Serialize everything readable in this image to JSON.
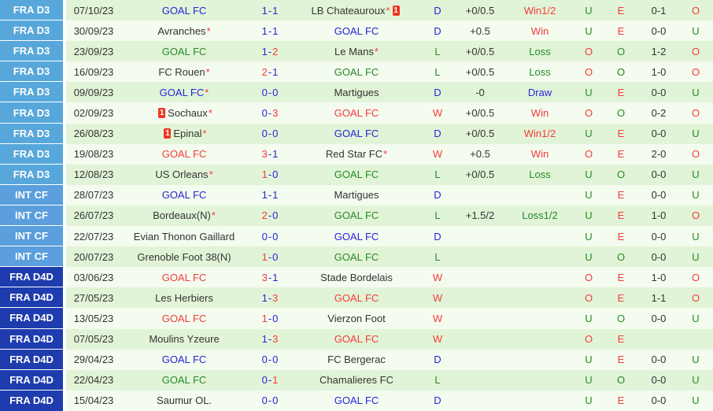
{
  "palette": {
    "red": "#f43c3c",
    "blue": "#2525d9",
    "green": "#268a26",
    "black": "#333333",
    "badge_d3": "#57a7da",
    "badge_cf": "#5b9fdc",
    "badge_d4d": "#1e3cae",
    "row_green": "#e2f4d7",
    "row_light": "#f4fbef",
    "card": "#ee3524",
    "separator": "#ffffff"
  },
  "icons": {
    "red_card": {
      "name": "red-card-icon",
      "glyph": "1"
    }
  },
  "table": {
    "rows": [
      {
        "league": "FRA D3",
        "league_style": "d3",
        "date": "07/10/23",
        "home": {
          "name": "GOAL FC",
          "color": "blue",
          "asterisk": false,
          "red_card": null
        },
        "score": {
          "home": "1",
          "away": "1",
          "winner": "draw"
        },
        "away": {
          "name": "LB Chateauroux",
          "color": "black",
          "asterisk": true,
          "red_card": "after"
        },
        "result": {
          "letter": "D",
          "color": "blue"
        },
        "handicap": "+0/0.5",
        "handicap_outcome": {
          "text": "Win1/2",
          "color": "red"
        },
        "goals_ou": {
          "text": "U",
          "color": "green"
        },
        "odd_even": {
          "text": "E",
          "color": "red"
        },
        "halftime_score": "0-1",
        "ht_ou": {
          "text": "O",
          "color": "red"
        }
      },
      {
        "league": "FRA D3",
        "league_style": "d3",
        "date": "30/09/23",
        "home": {
          "name": "Avranches",
          "color": "black",
          "asterisk": true,
          "red_card": null
        },
        "score": {
          "home": "1",
          "away": "1",
          "winner": "draw"
        },
        "away": {
          "name": "GOAL FC",
          "color": "blue",
          "asterisk": false,
          "red_card": null
        },
        "result": {
          "letter": "D",
          "color": "blue"
        },
        "handicap": "+0.5",
        "handicap_outcome": {
          "text": "Win",
          "color": "red"
        },
        "goals_ou": {
          "text": "U",
          "color": "green"
        },
        "odd_even": {
          "text": "E",
          "color": "red"
        },
        "halftime_score": "0-0",
        "ht_ou": {
          "text": "U",
          "color": "green"
        }
      },
      {
        "league": "FRA D3",
        "league_style": "d3",
        "date": "23/09/23",
        "home": {
          "name": "GOAL FC",
          "color": "green",
          "asterisk": false,
          "red_card": null
        },
        "score": {
          "home": "1",
          "away": "2",
          "winner": "away"
        },
        "away": {
          "name": "Le Mans",
          "color": "black",
          "asterisk": true,
          "red_card": null
        },
        "result": {
          "letter": "L",
          "color": "green"
        },
        "handicap": "+0/0.5",
        "handicap_outcome": {
          "text": "Loss",
          "color": "green"
        },
        "goals_ou": {
          "text": "O",
          "color": "red"
        },
        "odd_even": {
          "text": "O",
          "color": "green"
        },
        "halftime_score": "1-2",
        "ht_ou": {
          "text": "O",
          "color": "red"
        }
      },
      {
        "league": "FRA D3",
        "league_style": "d3",
        "date": "16/09/23",
        "home": {
          "name": "FC Rouen",
          "color": "black",
          "asterisk": true,
          "red_card": null
        },
        "score": {
          "home": "2",
          "away": "1",
          "winner": "home"
        },
        "away": {
          "name": "GOAL FC",
          "color": "green",
          "asterisk": false,
          "red_card": null
        },
        "result": {
          "letter": "L",
          "color": "green"
        },
        "handicap": "+0/0.5",
        "handicap_outcome": {
          "text": "Loss",
          "color": "green"
        },
        "goals_ou": {
          "text": "O",
          "color": "red"
        },
        "odd_even": {
          "text": "O",
          "color": "green"
        },
        "halftime_score": "1-0",
        "ht_ou": {
          "text": "O",
          "color": "red"
        }
      },
      {
        "league": "FRA D3",
        "league_style": "d3",
        "date": "09/09/23",
        "home": {
          "name": "GOAL FC",
          "color": "blue",
          "asterisk": true,
          "red_card": null
        },
        "score": {
          "home": "0",
          "away": "0",
          "winner": "draw"
        },
        "away": {
          "name": "Martigues",
          "color": "black",
          "asterisk": false,
          "red_card": null
        },
        "result": {
          "letter": "D",
          "color": "blue"
        },
        "handicap": "-0",
        "handicap_outcome": {
          "text": "Draw",
          "color": "blue"
        },
        "goals_ou": {
          "text": "U",
          "color": "green"
        },
        "odd_even": {
          "text": "E",
          "color": "red"
        },
        "halftime_score": "0-0",
        "ht_ou": {
          "text": "U",
          "color": "green"
        }
      },
      {
        "league": "FRA D3",
        "league_style": "d3",
        "date": "02/09/23",
        "home": {
          "name": "Sochaux",
          "color": "black",
          "asterisk": true,
          "red_card": "before"
        },
        "score": {
          "home": "0",
          "away": "3",
          "winner": "away"
        },
        "away": {
          "name": "GOAL FC",
          "color": "red",
          "asterisk": false,
          "red_card": null
        },
        "result": {
          "letter": "W",
          "color": "red"
        },
        "handicap": "+0/0.5",
        "handicap_outcome": {
          "text": "Win",
          "color": "red"
        },
        "goals_ou": {
          "text": "O",
          "color": "red"
        },
        "odd_even": {
          "text": "O",
          "color": "green"
        },
        "halftime_score": "0-2",
        "ht_ou": {
          "text": "O",
          "color": "red"
        }
      },
      {
        "league": "FRA D3",
        "league_style": "d3",
        "date": "26/08/23",
        "home": {
          "name": "Epinal",
          "color": "black",
          "asterisk": true,
          "red_card": "before"
        },
        "score": {
          "home": "0",
          "away": "0",
          "winner": "draw"
        },
        "away": {
          "name": "GOAL FC",
          "color": "blue",
          "asterisk": false,
          "red_card": null
        },
        "result": {
          "letter": "D",
          "color": "blue"
        },
        "handicap": "+0/0.5",
        "handicap_outcome": {
          "text": "Win1/2",
          "color": "red"
        },
        "goals_ou": {
          "text": "U",
          "color": "green"
        },
        "odd_even": {
          "text": "E",
          "color": "red"
        },
        "halftime_score": "0-0",
        "ht_ou": {
          "text": "U",
          "color": "green"
        }
      },
      {
        "league": "FRA D3",
        "league_style": "d3",
        "date": "19/08/23",
        "home": {
          "name": "GOAL FC",
          "color": "red",
          "asterisk": false,
          "red_card": null
        },
        "score": {
          "home": "3",
          "away": "1",
          "winner": "home"
        },
        "away": {
          "name": "Red Star FC",
          "color": "black",
          "asterisk": true,
          "red_card": null
        },
        "result": {
          "letter": "W",
          "color": "red"
        },
        "handicap": "+0.5",
        "handicap_outcome": {
          "text": "Win",
          "color": "red"
        },
        "goals_ou": {
          "text": "O",
          "color": "red"
        },
        "odd_even": {
          "text": "E",
          "color": "red"
        },
        "halftime_score": "2-0",
        "ht_ou": {
          "text": "O",
          "color": "red"
        }
      },
      {
        "league": "FRA D3",
        "league_style": "d3",
        "date": "12/08/23",
        "home": {
          "name": "US Orleans",
          "color": "black",
          "asterisk": true,
          "red_card": null
        },
        "score": {
          "home": "1",
          "away": "0",
          "winner": "home"
        },
        "away": {
          "name": "GOAL FC",
          "color": "green",
          "asterisk": false,
          "red_card": null
        },
        "result": {
          "letter": "L",
          "color": "green"
        },
        "handicap": "+0/0.5",
        "handicap_outcome": {
          "text": "Loss",
          "color": "green"
        },
        "goals_ou": {
          "text": "U",
          "color": "green"
        },
        "odd_even": {
          "text": "O",
          "color": "green"
        },
        "halftime_score": "0-0",
        "ht_ou": {
          "text": "U",
          "color": "green"
        }
      },
      {
        "league": "INT CF",
        "league_style": "cf",
        "date": "28/07/23",
        "home": {
          "name": "GOAL FC",
          "color": "blue",
          "asterisk": false,
          "red_card": null
        },
        "score": {
          "home": "1",
          "away": "1",
          "winner": "draw"
        },
        "away": {
          "name": "Martigues",
          "color": "black",
          "asterisk": false,
          "red_card": null
        },
        "result": {
          "letter": "D",
          "color": "blue"
        },
        "handicap": "",
        "handicap_outcome": {
          "text": "",
          "color": "black"
        },
        "goals_ou": {
          "text": "U",
          "color": "green"
        },
        "odd_even": {
          "text": "E",
          "color": "red"
        },
        "halftime_score": "0-0",
        "ht_ou": {
          "text": "U",
          "color": "green"
        }
      },
      {
        "league": "INT CF",
        "league_style": "cf",
        "date": "26/07/23",
        "home": {
          "name": "Bordeaux(N)",
          "color": "black",
          "asterisk": true,
          "red_card": null
        },
        "score": {
          "home": "2",
          "away": "0",
          "winner": "home"
        },
        "away": {
          "name": "GOAL FC",
          "color": "green",
          "asterisk": false,
          "red_card": null
        },
        "result": {
          "letter": "L",
          "color": "green"
        },
        "handicap": "+1.5/2",
        "handicap_outcome": {
          "text": "Loss1/2",
          "color": "green"
        },
        "goals_ou": {
          "text": "U",
          "color": "green"
        },
        "odd_even": {
          "text": "E",
          "color": "red"
        },
        "halftime_score": "1-0",
        "ht_ou": {
          "text": "O",
          "color": "red"
        }
      },
      {
        "league": "INT CF",
        "league_style": "cf",
        "date": "22/07/23",
        "home": {
          "name": "Evian Thonon Gaillard",
          "color": "black",
          "asterisk": false,
          "red_card": null
        },
        "score": {
          "home": "0",
          "away": "0",
          "winner": "draw"
        },
        "away": {
          "name": "GOAL FC",
          "color": "blue",
          "asterisk": false,
          "red_card": null
        },
        "result": {
          "letter": "D",
          "color": "blue"
        },
        "handicap": "",
        "handicap_outcome": {
          "text": "",
          "color": "black"
        },
        "goals_ou": {
          "text": "U",
          "color": "green"
        },
        "odd_even": {
          "text": "E",
          "color": "red"
        },
        "halftime_score": "0-0",
        "ht_ou": {
          "text": "U",
          "color": "green"
        }
      },
      {
        "league": "INT CF",
        "league_style": "cf",
        "date": "20/07/23",
        "home": {
          "name": "Grenoble Foot 38(N)",
          "color": "black",
          "asterisk": false,
          "red_card": null
        },
        "score": {
          "home": "1",
          "away": "0",
          "winner": "home"
        },
        "away": {
          "name": "GOAL FC",
          "color": "green",
          "asterisk": false,
          "red_card": null
        },
        "result": {
          "letter": "L",
          "color": "green"
        },
        "handicap": "",
        "handicap_outcome": {
          "text": "",
          "color": "black"
        },
        "goals_ou": {
          "text": "U",
          "color": "green"
        },
        "odd_even": {
          "text": "O",
          "color": "green"
        },
        "halftime_score": "0-0",
        "ht_ou": {
          "text": "U",
          "color": "green"
        }
      },
      {
        "league": "FRA D4D",
        "league_style": "d4d",
        "date": "03/06/23",
        "home": {
          "name": "GOAL FC",
          "color": "red",
          "asterisk": false,
          "red_card": null
        },
        "score": {
          "home": "3",
          "away": "1",
          "winner": "home"
        },
        "away": {
          "name": "Stade Bordelais",
          "color": "black",
          "asterisk": false,
          "red_card": null
        },
        "result": {
          "letter": "W",
          "color": "red"
        },
        "handicap": "",
        "handicap_outcome": {
          "text": "",
          "color": "black"
        },
        "goals_ou": {
          "text": "O",
          "color": "red"
        },
        "odd_even": {
          "text": "E",
          "color": "red"
        },
        "halftime_score": "1-0",
        "ht_ou": {
          "text": "O",
          "color": "red"
        }
      },
      {
        "league": "FRA D4D",
        "league_style": "d4d",
        "date": "27/05/23",
        "home": {
          "name": "Les Herbiers",
          "color": "black",
          "asterisk": false,
          "red_card": null
        },
        "score": {
          "home": "1",
          "away": "3",
          "winner": "away"
        },
        "away": {
          "name": "GOAL FC",
          "color": "red",
          "asterisk": false,
          "red_card": null
        },
        "result": {
          "letter": "W",
          "color": "red"
        },
        "handicap": "",
        "handicap_outcome": {
          "text": "",
          "color": "black"
        },
        "goals_ou": {
          "text": "O",
          "color": "red"
        },
        "odd_even": {
          "text": "E",
          "color": "red"
        },
        "halftime_score": "1-1",
        "ht_ou": {
          "text": "O",
          "color": "red"
        }
      },
      {
        "league": "FRA D4D",
        "league_style": "d4d",
        "date": "13/05/23",
        "home": {
          "name": "GOAL FC",
          "color": "red",
          "asterisk": false,
          "red_card": null
        },
        "score": {
          "home": "1",
          "away": "0",
          "winner": "home"
        },
        "away": {
          "name": "Vierzon Foot",
          "color": "black",
          "asterisk": false,
          "red_card": null
        },
        "result": {
          "letter": "W",
          "color": "red"
        },
        "handicap": "",
        "handicap_outcome": {
          "text": "",
          "color": "black"
        },
        "goals_ou": {
          "text": "U",
          "color": "green"
        },
        "odd_even": {
          "text": "O",
          "color": "green"
        },
        "halftime_score": "0-0",
        "ht_ou": {
          "text": "U",
          "color": "green"
        }
      },
      {
        "league": "FRA D4D",
        "league_style": "d4d",
        "date": "07/05/23",
        "home": {
          "name": "Moulins Yzeure",
          "color": "black",
          "asterisk": false,
          "red_card": null
        },
        "score": {
          "home": "1",
          "away": "3",
          "winner": "away"
        },
        "away": {
          "name": "GOAL FC",
          "color": "red",
          "asterisk": false,
          "red_card": null
        },
        "result": {
          "letter": "W",
          "color": "red"
        },
        "handicap": "",
        "handicap_outcome": {
          "text": "",
          "color": "black"
        },
        "goals_ou": {
          "text": "O",
          "color": "red"
        },
        "odd_even": {
          "text": "E",
          "color": "red"
        },
        "halftime_score": "",
        "ht_ou": {
          "text": "",
          "color": "black"
        }
      },
      {
        "league": "FRA D4D",
        "league_style": "d4d",
        "date": "29/04/23",
        "home": {
          "name": "GOAL FC",
          "color": "blue",
          "asterisk": false,
          "red_card": null
        },
        "score": {
          "home": "0",
          "away": "0",
          "winner": "draw"
        },
        "away": {
          "name": "FC Bergerac",
          "color": "black",
          "asterisk": false,
          "red_card": null
        },
        "result": {
          "letter": "D",
          "color": "blue"
        },
        "handicap": "",
        "handicap_outcome": {
          "text": "",
          "color": "black"
        },
        "goals_ou": {
          "text": "U",
          "color": "green"
        },
        "odd_even": {
          "text": "E",
          "color": "red"
        },
        "halftime_score": "0-0",
        "ht_ou": {
          "text": "U",
          "color": "green"
        }
      },
      {
        "league": "FRA D4D",
        "league_style": "d4d",
        "date": "22/04/23",
        "home": {
          "name": "GOAL FC",
          "color": "green",
          "asterisk": false,
          "red_card": null
        },
        "score": {
          "home": "0",
          "away": "1",
          "winner": "away"
        },
        "away": {
          "name": "Chamalieres FC",
          "color": "black",
          "asterisk": false,
          "red_card": null
        },
        "result": {
          "letter": "L",
          "color": "green"
        },
        "handicap": "",
        "handicap_outcome": {
          "text": "",
          "color": "black"
        },
        "goals_ou": {
          "text": "U",
          "color": "green"
        },
        "odd_even": {
          "text": "O",
          "color": "green"
        },
        "halftime_score": "0-0",
        "ht_ou": {
          "text": "U",
          "color": "green"
        }
      },
      {
        "league": "FRA D4D",
        "league_style": "d4d",
        "date": "15/04/23",
        "home": {
          "name": "Saumur OL.",
          "color": "black",
          "asterisk": false,
          "red_card": null
        },
        "score": {
          "home": "0",
          "away": "0",
          "winner": "draw"
        },
        "away": {
          "name": "GOAL FC",
          "color": "blue",
          "asterisk": false,
          "red_card": null
        },
        "result": {
          "letter": "D",
          "color": "blue"
        },
        "handicap": "",
        "handicap_outcome": {
          "text": "",
          "color": "black"
        },
        "goals_ou": {
          "text": "U",
          "color": "green"
        },
        "odd_even": {
          "text": "E",
          "color": "red"
        },
        "halftime_score": "0-0",
        "ht_ou": {
          "text": "U",
          "color": "green"
        }
      }
    ]
  }
}
